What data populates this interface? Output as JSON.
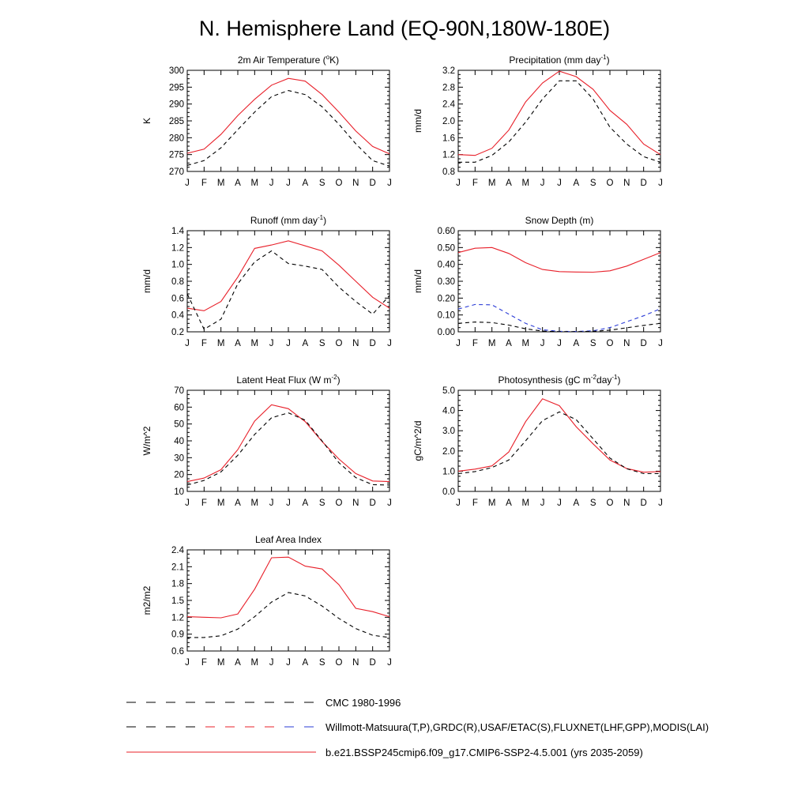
{
  "figure": {
    "title": "N. Hemisphere Land (EQ-90N,180W-180E)"
  },
  "colors": {
    "model": "#e8202a",
    "obs": "#000000",
    "obs_alt": "#2a3bd6"
  },
  "legend": [
    {
      "label": "CMC 1980-1996",
      "style": "dashed",
      "colors": [
        "#000000"
      ]
    },
    {
      "label": "Willmott-Matsuura(T,P),GRDC(R),USAF/ETAC(S),FLUXNET(LHF,GPP),MODIS(LAI)",
      "style": "dashed",
      "colors": [
        "#000000",
        "#e8202a",
        "#2a3bd6"
      ]
    },
    {
      "label": "b.e21.BSSP245cmip6.f09_g17.CMIP6-SSP2-4.5.001 (yrs 2035-2059)",
      "style": "solid",
      "colors": [
        "#e8202a"
      ]
    }
  ],
  "chart_data": [
    {
      "type": "line",
      "title": {
        "pre": "2m Air Temperature (",
        "sup": "o",
        "post": "K)"
      },
      "ylabel": "K",
      "ylim": [
        270,
        300
      ],
      "yticks": [
        "270",
        "275",
        "280",
        "285",
        "290",
        "295",
        "300"
      ],
      "categories": [
        "J",
        "F",
        "M",
        "A",
        "M",
        "J",
        "J",
        "A",
        "S",
        "O",
        "N",
        "D",
        "J"
      ],
      "series": [
        {
          "style": "solid",
          "color": "#e8202a",
          "values": [
            275.4,
            276.6,
            281.0,
            286.6,
            291.4,
            295.6,
            297.6,
            296.8,
            292.8,
            287.6,
            282.0,
            277.4,
            275.2
          ]
        },
        {
          "style": "dashed",
          "color": "#000000",
          "values": [
            271.8,
            273.2,
            277.0,
            282.4,
            287.6,
            292.2,
            294.0,
            292.8,
            289.2,
            284.0,
            278.2,
            273.2,
            271.6
          ]
        }
      ]
    },
    {
      "type": "line",
      "title": {
        "pre": "Precipitation (mm day",
        "sup": "-1",
        "post": ")"
      },
      "ylabel": "mm/d",
      "ylim": [
        0.8,
        3.2
      ],
      "yticks": [
        "0.8",
        "1.2",
        "1.6",
        "2.0",
        "2.4",
        "2.8",
        "3.2"
      ],
      "categories": [
        "J",
        "F",
        "M",
        "A",
        "M",
        "J",
        "J",
        "A",
        "S",
        "O",
        "N",
        "D",
        "J"
      ],
      "series": [
        {
          "style": "solid",
          "color": "#e8202a",
          "values": [
            1.2,
            1.18,
            1.35,
            1.78,
            2.45,
            2.9,
            3.18,
            3.05,
            2.75,
            2.25,
            1.92,
            1.45,
            1.2
          ]
        },
        {
          "style": "dashed",
          "color": "#000000",
          "values": [
            1.02,
            1.02,
            1.18,
            1.5,
            1.97,
            2.52,
            2.95,
            2.95,
            2.52,
            1.85,
            1.45,
            1.15,
            1.02
          ]
        }
      ]
    },
    {
      "type": "line",
      "title": {
        "pre": "Runoff (mm day",
        "sup": "-1",
        "post": ")"
      },
      "ylabel": "mm/d",
      "ylim": [
        0.2,
        1.4
      ],
      "yticks": [
        "0.2",
        "0.4",
        "0.6",
        "0.8",
        "1.0",
        "1.2",
        "1.4"
      ],
      "categories": [
        "J",
        "F",
        "M",
        "A",
        "M",
        "J",
        "J",
        "A",
        "S",
        "O",
        "N",
        "D",
        "J"
      ],
      "series": [
        {
          "style": "solid",
          "color": "#e8202a",
          "values": [
            0.48,
            0.45,
            0.56,
            0.85,
            1.19,
            1.23,
            1.28,
            1.22,
            1.16,
            0.99,
            0.8,
            0.61,
            0.48
          ]
        },
        {
          "style": "dashed",
          "color": "#000000",
          "values": [
            0.65,
            0.23,
            0.35,
            0.77,
            1.03,
            1.16,
            1.01,
            0.98,
            0.94,
            0.73,
            0.56,
            0.41,
            0.63
          ]
        }
      ]
    },
    {
      "type": "line",
      "title": {
        "pre": "Snow Depth (m)",
        "sup": "",
        "post": ""
      },
      "ylabel": "mm/d",
      "ylim": [
        0.0,
        0.6
      ],
      "yticks": [
        "0.00",
        "0.10",
        "0.20",
        "0.30",
        "0.40",
        "0.50",
        "0.60"
      ],
      "categories": [
        "J",
        "F",
        "M",
        "A",
        "M",
        "J",
        "J",
        "A",
        "S",
        "O",
        "N",
        "D",
        "J"
      ],
      "series": [
        {
          "style": "solid",
          "color": "#e8202a",
          "values": [
            0.47,
            0.496,
            0.5,
            0.465,
            0.41,
            0.37,
            0.357,
            0.355,
            0.354,
            0.362,
            0.39,
            0.43,
            0.47
          ]
        },
        {
          "style": "dashed",
          "color": "#2a3bd6",
          "values": [
            0.135,
            0.162,
            0.16,
            0.105,
            0.05,
            0.012,
            0.003,
            0.002,
            0.006,
            0.025,
            0.06,
            0.095,
            0.137
          ]
        },
        {
          "style": "dashed",
          "color": "#000000",
          "values": [
            0.05,
            0.058,
            0.055,
            0.04,
            0.018,
            0.004,
            0.001,
            0.001,
            0.003,
            0.01,
            0.024,
            0.038,
            0.05
          ]
        }
      ]
    },
    {
      "type": "line",
      "title": {
        "pre": "Latent Heat Flux (W m",
        "sup": "-2",
        "post": ")"
      },
      "ylabel": "W/m^2",
      "ylim": [
        10,
        70
      ],
      "yticks": [
        "10",
        "20",
        "30",
        "40",
        "50",
        "60",
        "70"
      ],
      "categories": [
        "J",
        "F",
        "M",
        "A",
        "M",
        "J",
        "J",
        "A",
        "S",
        "O",
        "N",
        "D",
        "J"
      ],
      "series": [
        {
          "style": "solid",
          "color": "#e8202a",
          "values": [
            15.8,
            17.9,
            22.9,
            34.8,
            51.7,
            61.4,
            59.1,
            51.4,
            39.6,
            29.2,
            20.6,
            16.2,
            15.8
          ]
        },
        {
          "style": "dashed",
          "color": "#000000",
          "values": [
            13.8,
            16.5,
            21.6,
            31.4,
            43.8,
            53.7,
            56.6,
            52.3,
            39.9,
            27.0,
            18.2,
            14.0,
            13.8
          ]
        }
      ]
    },
    {
      "type": "line",
      "title": {
        "pre": "Photosynthesis (gC m",
        "sup": "-2",
        "post": "day",
        "sup2": "-1",
        "post2": ")"
      },
      "ylabel": "gC/m^2/d",
      "ylim": [
        0.0,
        5.0
      ],
      "yticks": [
        "0.0",
        "1.0",
        "2.0",
        "3.0",
        "4.0",
        "5.0"
      ],
      "categories": [
        "J",
        "F",
        "M",
        "A",
        "M",
        "J",
        "J",
        "A",
        "S",
        "O",
        "N",
        "D",
        "J"
      ],
      "series": [
        {
          "style": "solid",
          "color": "#e8202a",
          "values": [
            1.0,
            1.1,
            1.26,
            1.95,
            3.45,
            4.58,
            4.24,
            3.2,
            2.35,
            1.55,
            1.13,
            0.95,
            0.98
          ]
        },
        {
          "style": "dashed",
          "color": "#000000",
          "values": [
            0.88,
            0.98,
            1.18,
            1.55,
            2.5,
            3.5,
            3.93,
            3.55,
            2.6,
            1.65,
            1.12,
            0.88,
            0.88
          ]
        }
      ]
    },
    {
      "type": "line",
      "title": {
        "pre": "Leaf Area Index",
        "sup": "",
        "post": ""
      },
      "ylabel": "m2/m2",
      "ylim": [
        0.6,
        2.4
      ],
      "yticks": [
        "0.6",
        "0.9",
        "1.2",
        "1.5",
        "1.8",
        "2.1",
        "2.4"
      ],
      "categories": [
        "J",
        "F",
        "M",
        "A",
        "M",
        "J",
        "J",
        "A",
        "S",
        "O",
        "N",
        "D",
        "J"
      ],
      "series": [
        {
          "style": "solid",
          "color": "#e8202a",
          "values": [
            1.21,
            1.2,
            1.19,
            1.26,
            1.7,
            2.26,
            2.27,
            2.11,
            2.06,
            1.78,
            1.36,
            1.3,
            1.21
          ]
        },
        {
          "style": "dashed",
          "color": "#000000",
          "values": [
            0.84,
            0.84,
            0.87,
            0.99,
            1.21,
            1.47,
            1.64,
            1.58,
            1.4,
            1.18,
            1.0,
            0.88,
            0.84
          ]
        }
      ]
    }
  ]
}
